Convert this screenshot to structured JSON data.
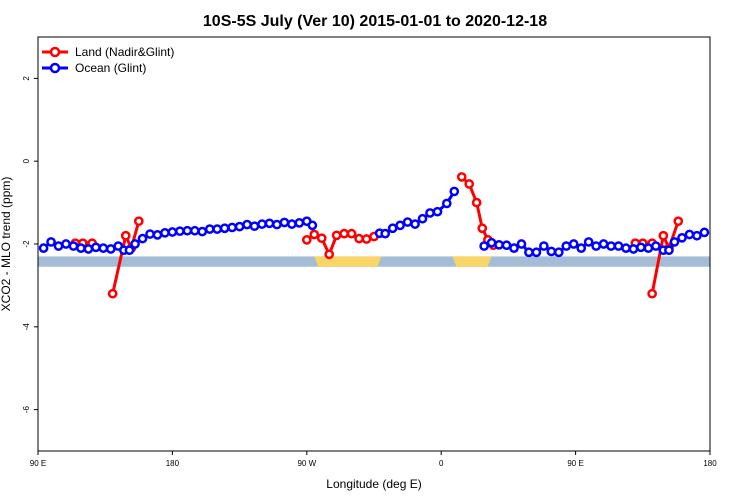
{
  "chart_data": {
    "type": "line",
    "title": "10S-5S July (Ver 10)   2015-01-01 to 2020-12-18",
    "xlabel": "Longitude (deg E)",
    "ylabel": "XCO2 - MLO trend (ppm)",
    "xlim": [
      90,
      450
    ],
    "ylim": [
      -7,
      3
    ],
    "x_ticks": [
      {
        "value": 90,
        "label": "90 E"
      },
      {
        "value": 162,
        "label": "180"
      },
      {
        "value": 234,
        "label": "90 W"
      },
      {
        "value": 306,
        "label": "0"
      },
      {
        "value": 378,
        "label": "90 E"
      },
      {
        "value": 450,
        "label": "180"
      }
    ],
    "y_ticks": [
      {
        "value": 2,
        "label": "2"
      },
      {
        "value": 0,
        "label": "0"
      },
      {
        "value": -2,
        "label": "-2"
      },
      {
        "value": -4,
        "label": "-4"
      },
      {
        "value": -6,
        "label": "-6"
      }
    ],
    "grid": false,
    "legend_position": "top-left",
    "land_band": {
      "y_top": -2.3,
      "y_bottom": -2.55,
      "ocean_color": "#a4bcd6",
      "land_color": "#f9d466"
    },
    "land_segments": [
      [
        238,
        274
      ],
      [
        312,
        333
      ]
    ],
    "series": [
      {
        "name": "Land (Nadir&Glint)",
        "color": "#ff0000",
        "segments": [
          [
            {
              "x": 110,
              "y": -1.98
            },
            {
              "x": 114,
              "y": -1.98
            },
            {
              "x": 119,
              "y": -1.98
            }
          ],
          [
            {
              "x": 130,
              "y": -3.2
            },
            {
              "x": 137,
              "y": -1.8
            },
            {
              "x": 140,
              "y": -2.1
            },
            {
              "x": 144,
              "y": -1.45
            }
          ],
          [
            {
              "x": 234,
              "y": -1.9
            },
            {
              "x": 238,
              "y": -1.77
            },
            {
              "x": 242,
              "y": -1.86
            },
            {
              "x": 246,
              "y": -2.25
            },
            {
              "x": 250,
              "y": -1.79
            },
            {
              "x": 254,
              "y": -1.75
            },
            {
              "x": 258,
              "y": -1.75
            },
            {
              "x": 262,
              "y": -1.87
            },
            {
              "x": 266,
              "y": -1.88
            },
            {
              "x": 270,
              "y": -1.82
            }
          ],
          [
            {
              "x": 317,
              "y": -0.38
            },
            {
              "x": 321,
              "y": -0.55
            },
            {
              "x": 325,
              "y": -1.0
            },
            {
              "x": 328,
              "y": -1.62
            },
            {
              "x": 331,
              "y": -1.9
            },
            {
              "x": 334,
              "y": -2.03
            }
          ],
          [
            {
              "x": 410,
              "y": -1.98
            },
            {
              "x": 414,
              "y": -1.98
            },
            {
              "x": 419,
              "y": -1.98
            }
          ],
          [
            {
              "x": 419,
              "y": -3.2
            },
            {
              "x": 425,
              "y": -1.8
            },
            {
              "x": 428,
              "y": -2.1
            },
            {
              "x": 433,
              "y": -1.45
            }
          ]
        ]
      },
      {
        "name": "Ocean (Glint)",
        "color": "#0000ff",
        "segments": [
          [
            {
              "x": 93,
              "y": -2.1
            },
            {
              "x": 97,
              "y": -1.95
            },
            {
              "x": 101,
              "y": -2.05
            },
            {
              "x": 105,
              "y": -2.0
            },
            {
              "x": 109,
              "y": -2.05
            },
            {
              "x": 113,
              "y": -2.1
            },
            {
              "x": 117,
              "y": -2.12
            },
            {
              "x": 121,
              "y": -2.08
            },
            {
              "x": 125,
              "y": -2.1
            },
            {
              "x": 129,
              "y": -2.12
            },
            {
              "x": 133,
              "y": -2.05
            },
            {
              "x": 136,
              "y": -2.15
            },
            {
              "x": 139,
              "y": -2.15
            },
            {
              "x": 142,
              "y": -2.0
            },
            {
              "x": 146,
              "y": -1.87
            },
            {
              "x": 150,
              "y": -1.76
            },
            {
              "x": 154,
              "y": -1.78
            },
            {
              "x": 158,
              "y": -1.73
            },
            {
              "x": 162,
              "y": -1.71
            },
            {
              "x": 166,
              "y": -1.69
            },
            {
              "x": 170,
              "y": -1.68
            },
            {
              "x": 174,
              "y": -1.68
            },
            {
              "x": 178,
              "y": -1.7
            },
            {
              "x": 182,
              "y": -1.64
            },
            {
              "x": 186,
              "y": -1.64
            },
            {
              "x": 190,
              "y": -1.62
            },
            {
              "x": 194,
              "y": -1.6
            },
            {
              "x": 198,
              "y": -1.58
            },
            {
              "x": 202,
              "y": -1.53
            },
            {
              "x": 206,
              "y": -1.57
            },
            {
              "x": 210,
              "y": -1.52
            },
            {
              "x": 214,
              "y": -1.5
            },
            {
              "x": 218,
              "y": -1.53
            },
            {
              "x": 222,
              "y": -1.48
            },
            {
              "x": 226,
              "y": -1.52
            },
            {
              "x": 230,
              "y": -1.49
            },
            {
              "x": 234,
              "y": -1.45
            },
            {
              "x": 237,
              "y": -1.55
            }
          ],
          [
            {
              "x": 273,
              "y": -1.74
            },
            {
              "x": 276,
              "y": -1.75
            },
            {
              "x": 280,
              "y": -1.62
            },
            {
              "x": 284,
              "y": -1.55
            },
            {
              "x": 288,
              "y": -1.47
            },
            {
              "x": 292,
              "y": -1.52
            },
            {
              "x": 296,
              "y": -1.39
            },
            {
              "x": 300,
              "y": -1.25
            },
            {
              "x": 304,
              "y": -1.22
            },
            {
              "x": 309,
              "y": -1.02
            },
            {
              "x": 313,
              "y": -0.73
            }
          ],
          [
            {
              "x": 329,
              "y": -2.05
            },
            {
              "x": 333,
              "y": -1.97
            },
            {
              "x": 337,
              "y": -2.02
            },
            {
              "x": 341,
              "y": -2.03
            },
            {
              "x": 345,
              "y": -2.1
            },
            {
              "x": 349,
              "y": -2.0
            },
            {
              "x": 353,
              "y": -2.2
            },
            {
              "x": 357,
              "y": -2.2
            },
            {
              "x": 361,
              "y": -2.05
            },
            {
              "x": 365,
              "y": -2.18
            },
            {
              "x": 369,
              "y": -2.2
            },
            {
              "x": 373,
              "y": -2.05
            },
            {
              "x": 377,
              "y": -2.0
            },
            {
              "x": 381,
              "y": -2.1
            },
            {
              "x": 385,
              "y": -1.95
            },
            {
              "x": 389,
              "y": -2.05
            },
            {
              "x": 393,
              "y": -2.0
            },
            {
              "x": 397,
              "y": -2.05
            },
            {
              "x": 401,
              "y": -2.05
            },
            {
              "x": 405,
              "y": -2.1
            },
            {
              "x": 409,
              "y": -2.12
            },
            {
              "x": 413,
              "y": -2.08
            },
            {
              "x": 417,
              "y": -2.1
            },
            {
              "x": 421,
              "y": -2.05
            },
            {
              "x": 425,
              "y": -2.15
            },
            {
              "x": 428,
              "y": -2.15
            },
            {
              "x": 431,
              "y": -1.95
            },
            {
              "x": 435,
              "y": -1.85
            },
            {
              "x": 439,
              "y": -1.77
            },
            {
              "x": 443,
              "y": -1.8
            },
            {
              "x": 447,
              "y": -1.72
            }
          ]
        ]
      }
    ]
  }
}
